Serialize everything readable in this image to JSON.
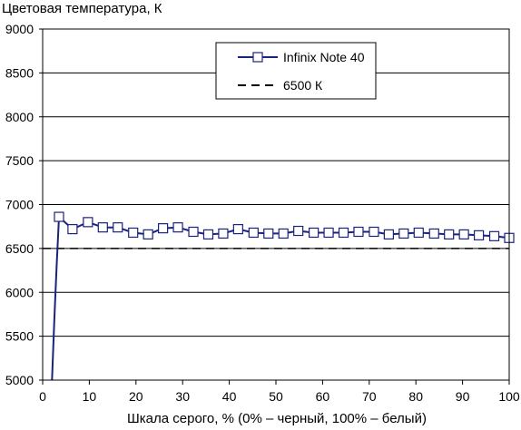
{
  "chart_data": {
    "type": "line",
    "title": "Цветовая температура, К",
    "xlabel": "Шкала серого, % (0% – черный, 100% – белый)",
    "ylabel": "",
    "xlim": [
      0,
      100
    ],
    "ylim": [
      5000,
      9000
    ],
    "xticks": [
      "0",
      "10",
      "20",
      "30",
      "40",
      "50",
      "60",
      "70",
      "80",
      "90",
      "100"
    ],
    "yticks": [
      "5000",
      "5500",
      "6000",
      "6500",
      "7000",
      "7500",
      "8000",
      "8500",
      "9000"
    ],
    "grid": "horizontal",
    "legend_position": "top-right",
    "series": [
      {
        "name": "Infinix Note 40",
        "color": "#1a237e",
        "marker": "square",
        "x": [
          2,
          2.5,
          3,
          3.5,
          6.4,
          9.7,
          12.9,
          16.1,
          19.4,
          22.6,
          25.8,
          29.0,
          32.3,
          35.5,
          38.7,
          41.9,
          45.2,
          48.4,
          51.6,
          54.8,
          58.1,
          61.3,
          64.5,
          67.7,
          71.0,
          74.2,
          77.4,
          80.6,
          83.9,
          87.1,
          90.3,
          93.5,
          96.8,
          100
        ],
        "values": [
          5000,
          5700,
          6300,
          6860,
          6720,
          6800,
          6740,
          6740,
          6680,
          6660,
          6730,
          6740,
          6690,
          6660,
          6670,
          6720,
          6680,
          6670,
          6670,
          6700,
          6680,
          6680,
          6680,
          6690,
          6690,
          6660,
          6670,
          6680,
          6670,
          6660,
          6660,
          6650,
          6640,
          6620
        ],
        "marker_start_index": 3
      },
      {
        "name": "6500 К",
        "color": "#000000",
        "style": "dashed",
        "x": [
          0,
          100
        ],
        "values": [
          6500,
          6500
        ]
      }
    ]
  }
}
